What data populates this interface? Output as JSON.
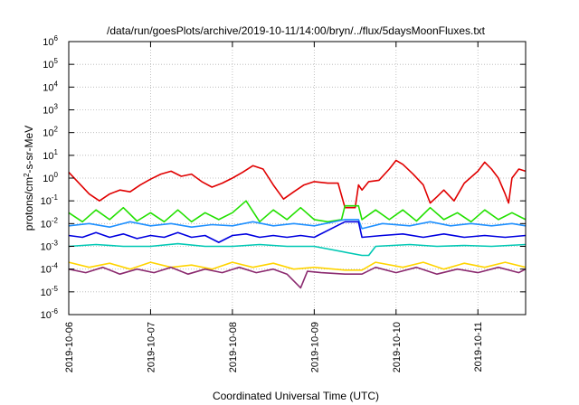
{
  "chart_data": {
    "type": "line",
    "title": "/data/run/goesPlots/archive/2019-10-11/14:00/bryn/../flux/5daysMoonFluxes.txt",
    "xlabel": "Coordinated Universal Time (UTC)",
    "ylabel": "protons/cm2-s-sr-MeV",
    "ylabel_parts": {
      "prefix": "protons/cm",
      "sup": "2",
      "suffix": "-s-sr-MeV"
    },
    "y_scale": "log",
    "ylim": [
      1e-06,
      1000000.0
    ],
    "y_ticks": [
      {
        "value": 1e-06,
        "base": "10",
        "exp": "-6"
      },
      {
        "value": 1e-05,
        "base": "10",
        "exp": "-5"
      },
      {
        "value": 0.0001,
        "base": "10",
        "exp": "-4"
      },
      {
        "value": 0.001,
        "base": "10",
        "exp": "-3"
      },
      {
        "value": 0.01,
        "base": "10",
        "exp": "-2"
      },
      {
        "value": 0.1,
        "base": "10",
        "exp": "-1"
      },
      {
        "value": 1,
        "base": "10",
        "exp": "0"
      },
      {
        "value": 10,
        "base": "10",
        "exp": "1"
      },
      {
        "value": 100,
        "base": "10",
        "exp": "2"
      },
      {
        "value": 1000,
        "base": "10",
        "exp": "3"
      },
      {
        "value": 10000,
        "base": "10",
        "exp": "4"
      },
      {
        "value": 100000,
        "base": "10",
        "exp": "5"
      },
      {
        "value": 1000000,
        "base": "10",
        "exp": "6"
      }
    ],
    "xlim": [
      "2019-10-06",
      "2019-10-11T14:00"
    ],
    "x_ticks": [
      "2019-10-06",
      "2019-10-07",
      "2019-10-08",
      "2019-10-09",
      "2019-10-10",
      "2019-10-11"
    ],
    "grid": true,
    "series": [
      {
        "color": "#e00000",
        "points": [
          [
            "2019-10-06T00:00",
            1.8
          ],
          [
            "2019-10-06T03:00",
            0.6
          ],
          [
            "2019-10-06T06:00",
            0.2
          ],
          [
            "2019-10-06T09:00",
            0.1
          ],
          [
            "2019-10-06T12:00",
            0.2
          ],
          [
            "2019-10-06T15:00",
            0.3
          ],
          [
            "2019-10-06T18:00",
            0.25
          ],
          [
            "2019-10-06T21:00",
            0.5
          ],
          [
            "2019-10-07T00:00",
            0.9
          ],
          [
            "2019-10-07T03:00",
            1.5
          ],
          [
            "2019-10-07T06:00",
            2.0
          ],
          [
            "2019-10-07T09:00",
            1.2
          ],
          [
            "2019-10-07T12:00",
            1.5
          ],
          [
            "2019-10-07T15:00",
            0.7
          ],
          [
            "2019-10-07T18:00",
            0.4
          ],
          [
            "2019-10-07T21:00",
            0.6
          ],
          [
            "2019-10-08T00:00",
            1.0
          ],
          [
            "2019-10-08T03:00",
            1.8
          ],
          [
            "2019-10-08T06:00",
            3.5
          ],
          [
            "2019-10-08T09:00",
            2.5
          ],
          [
            "2019-10-08T12:00",
            0.5
          ],
          [
            "2019-10-08T15:00",
            0.12
          ],
          [
            "2019-10-08T18:00",
            0.25
          ],
          [
            "2019-10-08T21:00",
            0.5
          ],
          [
            "2019-10-09T00:00",
            0.7
          ],
          [
            "2019-10-09T04:00",
            0.6
          ],
          [
            "2019-10-09T07:00",
            0.6
          ],
          [
            "2019-10-09T09:00",
            0.05
          ],
          [
            "2019-10-09T12:00",
            0.05
          ],
          [
            "2019-10-09T13:00",
            0.5
          ],
          [
            "2019-10-09T14:00",
            0.3
          ],
          [
            "2019-10-09T16:00",
            0.7
          ],
          [
            "2019-10-09T19:00",
            0.8
          ],
          [
            "2019-10-09T22:00",
            2.5
          ],
          [
            "2019-10-10T00:00",
            6.0
          ],
          [
            "2019-10-10T02:00",
            4.0
          ],
          [
            "2019-10-10T05:00",
            1.5
          ],
          [
            "2019-10-10T08:00",
            0.5
          ],
          [
            "2019-10-10T10:00",
            0.08
          ],
          [
            "2019-10-10T12:00",
            0.15
          ],
          [
            "2019-10-10T14:00",
            0.3
          ],
          [
            "2019-10-10T17:00",
            0.1
          ],
          [
            "2019-10-10T20:00",
            0.6
          ],
          [
            "2019-10-11T00:00",
            2.0
          ],
          [
            "2019-10-11T02:00",
            5.0
          ],
          [
            "2019-10-11T04:00",
            2.5
          ],
          [
            "2019-10-11T06:00",
            1.0
          ],
          [
            "2019-10-11T08:00",
            0.2
          ],
          [
            "2019-10-11T09:00",
            0.08
          ],
          [
            "2019-10-11T10:00",
            1.0
          ],
          [
            "2019-10-11T12:00",
            2.5
          ],
          [
            "2019-10-11T14:00",
            2.0
          ]
        ]
      },
      {
        "color": "#22e000",
        "points": [
          [
            "2019-10-06T00:00",
            0.03
          ],
          [
            "2019-10-06T04:00",
            0.012
          ],
          [
            "2019-10-06T08:00",
            0.04
          ],
          [
            "2019-10-06T12:00",
            0.015
          ],
          [
            "2019-10-06T16:00",
            0.05
          ],
          [
            "2019-10-06T20:00",
            0.013
          ],
          [
            "2019-10-07T00:00",
            0.03
          ],
          [
            "2019-10-07T04:00",
            0.012
          ],
          [
            "2019-10-07T08:00",
            0.04
          ],
          [
            "2019-10-07T12:00",
            0.012
          ],
          [
            "2019-10-07T16:00",
            0.03
          ],
          [
            "2019-10-07T20:00",
            0.015
          ],
          [
            "2019-10-08T00:00",
            0.03
          ],
          [
            "2019-10-08T04:00",
            0.1
          ],
          [
            "2019-10-08T08:00",
            0.012
          ],
          [
            "2019-10-08T12:00",
            0.04
          ],
          [
            "2019-10-08T16:00",
            0.015
          ],
          [
            "2019-10-08T20:00",
            0.05
          ],
          [
            "2019-10-09T00:00",
            0.015
          ],
          [
            "2019-10-09T04:00",
            0.012
          ],
          [
            "2019-10-09T08:00",
            0.015
          ],
          [
            "2019-10-09T09:00",
            0.06
          ],
          [
            "2019-10-09T13:00",
            0.06
          ],
          [
            "2019-10-09T14:00",
            0.015
          ],
          [
            "2019-10-09T18:00",
            0.04
          ],
          [
            "2019-10-09T22:00",
            0.015
          ],
          [
            "2019-10-10T02:00",
            0.04
          ],
          [
            "2019-10-10T06:00",
            0.013
          ],
          [
            "2019-10-10T10:00",
            0.05
          ],
          [
            "2019-10-10T14:00",
            0.015
          ],
          [
            "2019-10-10T18:00",
            0.03
          ],
          [
            "2019-10-10T22:00",
            0.012
          ],
          [
            "2019-10-11T02:00",
            0.04
          ],
          [
            "2019-10-11T06:00",
            0.015
          ],
          [
            "2019-10-11T10:00",
            0.03
          ],
          [
            "2019-10-11T14:00",
            0.015
          ]
        ]
      },
      {
        "color": "#1e90ff",
        "points": [
          [
            "2019-10-06T00:00",
            0.008
          ],
          [
            "2019-10-06T06:00",
            0.01
          ],
          [
            "2019-10-06T12:00",
            0.007
          ],
          [
            "2019-10-06T18:00",
            0.012
          ],
          [
            "2019-10-07T00:00",
            0.008
          ],
          [
            "2019-10-07T06:00",
            0.01
          ],
          [
            "2019-10-07T12:00",
            0.007
          ],
          [
            "2019-10-07T18:00",
            0.009
          ],
          [
            "2019-10-08T00:00",
            0.008
          ],
          [
            "2019-10-08T06:00",
            0.012
          ],
          [
            "2019-10-08T12:00",
            0.008
          ],
          [
            "2019-10-08T18:00",
            0.01
          ],
          [
            "2019-10-09T00:00",
            0.008
          ],
          [
            "2019-10-09T09:00",
            0.015
          ],
          [
            "2019-10-09T13:00",
            0.015
          ],
          [
            "2019-10-09T14:00",
            0.006
          ],
          [
            "2019-10-09T20:00",
            0.01
          ],
          [
            "2019-10-10T04:00",
            0.008
          ],
          [
            "2019-10-10T10:00",
            0.012
          ],
          [
            "2019-10-10T16:00",
            0.008
          ],
          [
            "2019-10-10T22:00",
            0.01
          ],
          [
            "2019-10-11T04:00",
            0.008
          ],
          [
            "2019-10-11T10:00",
            0.01
          ],
          [
            "2019-10-11T14:00",
            0.008
          ]
        ]
      },
      {
        "color": "#0000e0",
        "points": [
          [
            "2019-10-06T00:00",
            0.003
          ],
          [
            "2019-10-06T04:00",
            0.0025
          ],
          [
            "2019-10-06T08:00",
            0.004
          ],
          [
            "2019-10-06T12:00",
            0.0025
          ],
          [
            "2019-10-06T16:00",
            0.0035
          ],
          [
            "2019-10-06T20:00",
            0.0022
          ],
          [
            "2019-10-07T00:00",
            0.003
          ],
          [
            "2019-10-07T04:00",
            0.0025
          ],
          [
            "2019-10-07T08:00",
            0.004
          ],
          [
            "2019-10-07T12:00",
            0.0025
          ],
          [
            "2019-10-07T16:00",
            0.003
          ],
          [
            "2019-10-07T20:00",
            0.0015
          ],
          [
            "2019-10-08T00:00",
            0.003
          ],
          [
            "2019-10-08T04:00",
            0.0035
          ],
          [
            "2019-10-08T08:00",
            0.0025
          ],
          [
            "2019-10-08T12:00",
            0.003
          ],
          [
            "2019-10-08T16:00",
            0.0025
          ],
          [
            "2019-10-08T20:00",
            0.003
          ],
          [
            "2019-10-09T00:00",
            0.0025
          ],
          [
            "2019-10-09T09:00",
            0.012
          ],
          [
            "2019-10-09T13:00",
            0.012
          ],
          [
            "2019-10-09T14:00",
            0.0025
          ],
          [
            "2019-10-09T20:00",
            0.003
          ],
          [
            "2019-10-10T02:00",
            0.0035
          ],
          [
            "2019-10-10T08:00",
            0.0025
          ],
          [
            "2019-10-10T14:00",
            0.0035
          ],
          [
            "2019-10-10T20:00",
            0.0025
          ],
          [
            "2019-10-11T02:00",
            0.003
          ],
          [
            "2019-10-11T08:00",
            0.0025
          ],
          [
            "2019-10-11T14:00",
            0.003
          ]
        ]
      },
      {
        "color": "#00c8b4",
        "points": [
          [
            "2019-10-06T00:00",
            0.001
          ],
          [
            "2019-10-06T08:00",
            0.0012
          ],
          [
            "2019-10-06T16:00",
            0.001
          ],
          [
            "2019-10-07T00:00",
            0.001
          ],
          [
            "2019-10-07T08:00",
            0.0013
          ],
          [
            "2019-10-07T16:00",
            0.001
          ],
          [
            "2019-10-08T00:00",
            0.001
          ],
          [
            "2019-10-08T08:00",
            0.0012
          ],
          [
            "2019-10-08T16:00",
            0.001
          ],
          [
            "2019-10-09T00:00",
            0.001
          ],
          [
            "2019-10-09T14:00",
            0.0004
          ],
          [
            "2019-10-09T16:00",
            0.0004
          ],
          [
            "2019-10-09T18:00",
            0.001
          ],
          [
            "2019-10-10T04:00",
            0.0012
          ],
          [
            "2019-10-10T12:00",
            0.001
          ],
          [
            "2019-10-10T20:00",
            0.0011
          ],
          [
            "2019-10-11T04:00",
            0.001
          ],
          [
            "2019-10-11T14:00",
            0.0012
          ]
        ]
      },
      {
        "color": "#ffd400",
        "points": [
          [
            "2019-10-06T00:00",
            0.0002
          ],
          [
            "2019-10-06T06:00",
            0.00012
          ],
          [
            "2019-10-06T12:00",
            0.00018
          ],
          [
            "2019-10-06T18:00",
            0.0001
          ],
          [
            "2019-10-07T00:00",
            0.0002
          ],
          [
            "2019-10-07T06:00",
            0.00012
          ],
          [
            "2019-10-07T12:00",
            0.00015
          ],
          [
            "2019-10-07T18:00",
            0.0001
          ],
          [
            "2019-10-08T00:00",
            0.0002
          ],
          [
            "2019-10-08T06:00",
            0.00012
          ],
          [
            "2019-10-08T12:00",
            0.00018
          ],
          [
            "2019-10-08T18:00",
            0.0001
          ],
          [
            "2019-10-09T00:00",
            0.00012
          ],
          [
            "2019-10-09T09:00",
            9e-05
          ],
          [
            "2019-10-09T14:00",
            9e-05
          ],
          [
            "2019-10-09T18:00",
            0.0002
          ],
          [
            "2019-10-10T02:00",
            0.00012
          ],
          [
            "2019-10-10T08:00",
            0.0002
          ],
          [
            "2019-10-10T14:00",
            0.0001
          ],
          [
            "2019-10-10T20:00",
            0.00018
          ],
          [
            "2019-10-11T02:00",
            0.00012
          ],
          [
            "2019-10-11T08:00",
            0.0002
          ],
          [
            "2019-10-11T14:00",
            0.00012
          ]
        ]
      },
      {
        "color": "#8b2a6f",
        "points": [
          [
            "2019-10-06T00:00",
            0.0001
          ],
          [
            "2019-10-06T05:00",
            7e-05
          ],
          [
            "2019-10-06T10:00",
            0.00012
          ],
          [
            "2019-10-06T15:00",
            6e-05
          ],
          [
            "2019-10-06T20:00",
            0.0001
          ],
          [
            "2019-10-07T01:00",
            7e-05
          ],
          [
            "2019-10-07T06:00",
            0.00012
          ],
          [
            "2019-10-07T11:00",
            6e-05
          ],
          [
            "2019-10-07T16:00",
            0.0001
          ],
          [
            "2019-10-07T21:00",
            7e-05
          ],
          [
            "2019-10-08T02:00",
            0.00012
          ],
          [
            "2019-10-08T07:00",
            7e-05
          ],
          [
            "2019-10-08T12:00",
            0.0001
          ],
          [
            "2019-10-08T16:00",
            6e-05
          ],
          [
            "2019-10-08T20:00",
            1.5e-05
          ],
          [
            "2019-10-08T22:00",
            8e-05
          ],
          [
            "2019-10-09T02:00",
            7e-05
          ],
          [
            "2019-10-09T09:00",
            6e-05
          ],
          [
            "2019-10-09T14:00",
            6e-05
          ],
          [
            "2019-10-09T18:00",
            0.00012
          ],
          [
            "2019-10-10T00:00",
            7e-05
          ],
          [
            "2019-10-10T06:00",
            0.00012
          ],
          [
            "2019-10-10T12:00",
            6e-05
          ],
          [
            "2019-10-10T18:00",
            0.0001
          ],
          [
            "2019-10-11T00:00",
            7e-05
          ],
          [
            "2019-10-11T06:00",
            0.00012
          ],
          [
            "2019-10-11T12:00",
            7e-05
          ],
          [
            "2019-10-11T14:00",
            0.0001
          ]
        ]
      }
    ]
  }
}
